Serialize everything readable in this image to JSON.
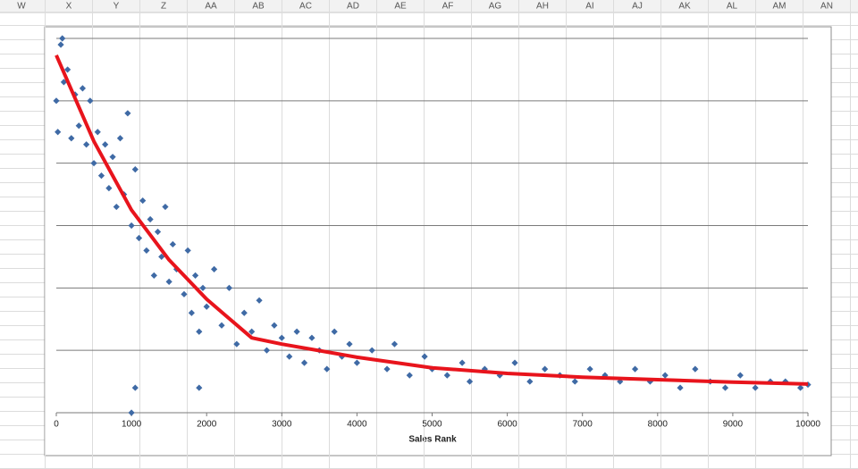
{
  "spreadsheet": {
    "columns": [
      "W",
      "X",
      "Y",
      "Z",
      "AA",
      "AB",
      "AC",
      "AD",
      "AE",
      "AF",
      "AG",
      "AH",
      "AI",
      "AJ",
      "AK",
      "AL",
      "AM",
      "AN"
    ]
  },
  "chart_data": {
    "type": "scatter",
    "x_label": "Sales Rank",
    "xlim": [
      0,
      10000
    ],
    "xticks": [
      0,
      1000,
      2000,
      3000,
      4000,
      5000,
      6000,
      7000,
      8000,
      9000,
      10000
    ],
    "ylim": [
      0,
      6
    ],
    "gridlines": [
      1,
      2,
      3,
      4,
      5,
      6
    ],
    "grid": true,
    "series": [
      {
        "type": "scatter",
        "color": "#3f6aa5",
        "x": [
          0,
          20,
          60,
          80,
          100,
          150,
          200,
          250,
          300,
          350,
          400,
          450,
          500,
          550,
          600,
          650,
          700,
          750,
          800,
          850,
          900,
          950,
          1000,
          1050,
          1100,
          1150,
          1200,
          1250,
          1300,
          1350,
          1400,
          1450,
          1500,
          1550,
          1600,
          1700,
          1750,
          1800,
          1850,
          1900,
          1950,
          2000,
          2100,
          2200,
          2300,
          2400,
          2500,
          2600,
          2700,
          2800,
          2900,
          3000,
          3100,
          3200,
          3300,
          3400,
          3500,
          3600,
          3700,
          3800,
          3900,
          4000,
          4200,
          4400,
          4500,
          4700,
          4900,
          5000,
          5200,
          5400,
          5500,
          5700,
          5900,
          6100,
          6300,
          6500,
          6700,
          6900,
          7100,
          7300,
          7500,
          7700,
          7900,
          8100,
          8300,
          8500,
          8700,
          8900,
          9100,
          9300,
          9500,
          9700,
          9900,
          10000,
          1000,
          1050,
          1900
        ],
        "values": [
          5,
          4.5,
          5.9,
          6,
          5.3,
          5.5,
          4.4,
          5.1,
          4.6,
          5.2,
          4.3,
          5,
          4,
          4.5,
          3.8,
          4.3,
          3.6,
          4.1,
          3.3,
          4.4,
          3.5,
          4.8,
          3,
          3.9,
          2.8,
          3.4,
          2.6,
          3.1,
          2.2,
          2.9,
          2.5,
          3.3,
          2.1,
          2.7,
          2.3,
          1.9,
          2.6,
          1.6,
          2.2,
          1.3,
          2,
          1.7,
          2.3,
          1.4,
          2,
          1.1,
          1.6,
          1.3,
          1.8,
          1,
          1.4,
          1.2,
          0.9,
          1.3,
          0.8,
          1.2,
          1,
          0.7,
          1.3,
          0.9,
          1.1,
          0.8,
          1,
          0.7,
          1.1,
          0.6,
          0.9,
          0.7,
          0.6,
          0.8,
          0.5,
          0.7,
          0.6,
          0.8,
          0.5,
          0.7,
          0.6,
          0.5,
          0.7,
          0.6,
          0.5,
          0.7,
          0.5,
          0.6,
          0.4,
          0.7,
          0.5,
          0.4,
          0.6,
          0.4,
          0.5,
          0.5,
          0.4,
          0.45,
          0,
          0.4,
          0.4
        ]
      },
      {
        "type": "line",
        "color": "#e8141c",
        "x": [
          0,
          500,
          1000,
          1500,
          2000,
          2600,
          3000,
          4000,
          5000,
          6000,
          7000,
          8000,
          9000,
          10000
        ],
        "values": [
          5.73,
          4.35,
          3.25,
          2.45,
          1.82,
          1.2,
          1.1,
          0.89,
          0.72,
          0.63,
          0.57,
          0.53,
          0.49,
          0.46
        ]
      }
    ]
  }
}
